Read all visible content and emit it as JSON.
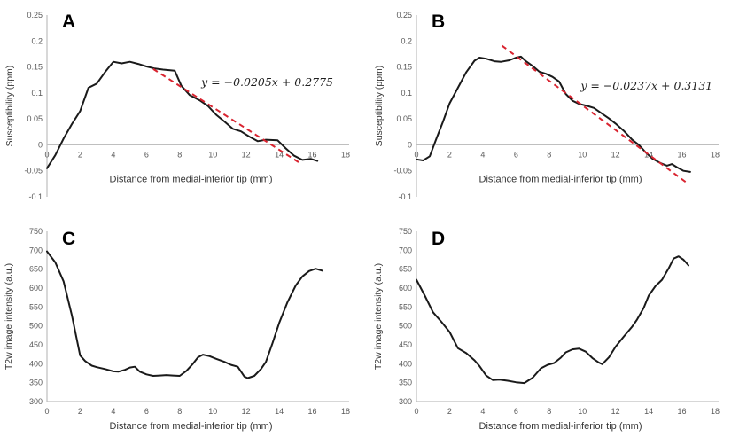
{
  "page": {
    "background": "#ffffff"
  },
  "colors": {
    "curve": "#1a1a1a",
    "trend": "#d92430",
    "axis_line": "#bfbfbf",
    "tick_text": "#595959",
    "axis_title_text": "#363636",
    "equation_text": "#1f1f1f",
    "panel_letter": "#000000"
  },
  "chart_data": [
    {
      "id": "panel-a",
      "letter": "A",
      "type": "line",
      "style": "ab",
      "xlabel": "Distance from medial-inferior tip (mm)",
      "ylabel": "Susceptibility (ppm)",
      "xlim": [
        0,
        18
      ],
      "ylim": [
        -0.1,
        0.25
      ],
      "x_axis_at": 0,
      "grid": false,
      "legend": null,
      "xticks": {
        "values": [
          0,
          2,
          4,
          6,
          8,
          10,
          12,
          14,
          16,
          18
        ],
        "labels": [
          "0",
          "2",
          "4",
          "6",
          "8",
          "10",
          "12",
          "14",
          "16",
          "18"
        ]
      },
      "yticks": {
        "values": [
          0.25,
          0.2,
          0.15,
          0.1,
          0.05,
          0,
          -0.05,
          -0.1
        ],
        "labels": [
          "0.25",
          "0.2",
          "0.15",
          "0.1",
          "0.05",
          "0",
          "-0.05",
          "-0.1"
        ]
      },
      "series": [
        {
          "name": "susceptibility-profile",
          "x": [
            0,
            0.5,
            1,
            1.5,
            2,
            2.5,
            3,
            3.5,
            4,
            4.5,
            5,
            5.5,
            6,
            6.5,
            7,
            7.7,
            8.1,
            8.6,
            9.2,
            9.7,
            10.2,
            10.7,
            11.2,
            11.7,
            12.2,
            12.7,
            13.2,
            13.9,
            14.4,
            14.9,
            15.4,
            15.9,
            16.3
          ],
          "y": [
            -0.045,
            -0.02,
            0.012,
            0.04,
            0.065,
            0.11,
            0.118,
            0.14,
            0.16,
            0.157,
            0.16,
            0.156,
            0.151,
            0.147,
            0.145,
            0.143,
            0.114,
            0.096,
            0.086,
            0.075,
            0.058,
            0.045,
            0.031,
            0.026,
            0.016,
            0.007,
            0.01,
            0.009,
            -0.007,
            -0.021,
            -0.029,
            -0.027,
            -0.031
          ]
        }
      ],
      "trendline": {
        "slope": -0.0205,
        "intercept": 0.2775,
        "x_start": 6.4,
        "x_end": 15.2,
        "label": "y = −0.0205x + 0.2775",
        "label_x": 9.3,
        "label_y": 0.113
      }
    },
    {
      "id": "panel-b",
      "letter": "B",
      "type": "line",
      "style": "ab",
      "xlabel": "Distance from medial-inferior tip (mm)",
      "ylabel": "Susceptibility (ppm)",
      "xlim": [
        0,
        18
      ],
      "ylim": [
        -0.1,
        0.25
      ],
      "x_axis_at": 0,
      "grid": false,
      "legend": null,
      "xticks": {
        "values": [
          0,
          2,
          4,
          6,
          8,
          10,
          12,
          14,
          16,
          18
        ],
        "labels": [
          "0",
          "2",
          "4",
          "6",
          "8",
          "10",
          "12",
          "14",
          "16",
          "18"
        ]
      },
      "yticks": {
        "values": [
          0.25,
          0.2,
          0.15,
          0.1,
          0.05,
          0,
          -0.05,
          -0.1
        ],
        "labels": [
          "0.25",
          "0.2",
          "0.15",
          "0.1",
          "0.05",
          "0",
          "-0.05",
          "-0.1"
        ]
      },
      "series": [
        {
          "name": "susceptibility-profile",
          "x": [
            0,
            0.4,
            0.8,
            1.2,
            1.6,
            2,
            2.5,
            3,
            3.5,
            3.8,
            4.2,
            4.7,
            5.1,
            5.6,
            6,
            6.3,
            6.6,
            7,
            7.4,
            7.8,
            8.2,
            8.6,
            9,
            9.4,
            9.8,
            10.3,
            10.7,
            11.1,
            11.6,
            12,
            12.5,
            13,
            13.4,
            13.8,
            14.2,
            14.7,
            15.1,
            15.4,
            15.7,
            16.1,
            16.5
          ],
          "y": [
            -0.028,
            -0.03,
            -0.022,
            0.012,
            0.045,
            0.08,
            0.11,
            0.14,
            0.162,
            0.168,
            0.166,
            0.161,
            0.16,
            0.163,
            0.168,
            0.17,
            0.161,
            0.152,
            0.141,
            0.137,
            0.131,
            0.122,
            0.098,
            0.085,
            0.079,
            0.075,
            0.071,
            0.062,
            0.051,
            0.041,
            0.027,
            0.01,
            0.0,
            -0.014,
            -0.026,
            -0.035,
            -0.04,
            -0.037,
            -0.043,
            -0.05,
            -0.052
          ]
        }
      ],
      "trendline": {
        "slope": -0.0237,
        "intercept": 0.3131,
        "x_start": 5.15,
        "x_end": 16.4,
        "label": "y = −0.0237x + 0.3131",
        "label_x": 9.9,
        "label_y": 0.107
      }
    },
    {
      "id": "panel-c",
      "letter": "C",
      "type": "line",
      "style": "cd",
      "xlabel": "Distance from medial-inferior tip (mm)",
      "ylabel": "T2w image intensity (a.u.)",
      "xlim": [
        0,
        18
      ],
      "ylim": [
        300,
        750
      ],
      "x_axis_at": 300,
      "grid": false,
      "legend": null,
      "xticks": {
        "values": [
          0,
          2,
          4,
          6,
          8,
          10,
          12,
          14,
          16,
          18
        ],
        "labels": [
          "0",
          "2",
          "4",
          "6",
          "8",
          "10",
          "12",
          "14",
          "16",
          "18"
        ]
      },
      "yticks": {
        "values": [
          750,
          700,
          650,
          600,
          550,
          500,
          450,
          400,
          350,
          300
        ],
        "labels": [
          "750",
          "700",
          "650",
          "600",
          "550",
          "500",
          "450",
          "400",
          "350",
          "300"
        ]
      },
      "series": [
        {
          "name": "t2w-intensity-profile",
          "x": [
            0,
            0.5,
            1,
            1.5,
            2,
            2.3,
            2.7,
            3,
            3.5,
            4,
            4.3,
            4.7,
            5,
            5.3,
            5.6,
            6,
            6.4,
            6.8,
            7.2,
            7.6,
            8,
            8.4,
            8.8,
            9.1,
            9.4,
            9.8,
            10.2,
            10.7,
            11.1,
            11.5,
            11.9,
            12.1,
            12.5,
            12.9,
            13.2,
            13.6,
            14,
            14.5,
            15,
            15.4,
            15.8,
            16.2,
            16.6
          ],
          "y": [
            697,
            668,
            618,
            528,
            422,
            407,
            395,
            391,
            386,
            380,
            379,
            384,
            390,
            392,
            379,
            372,
            368,
            369,
            370,
            369,
            368,
            381,
            400,
            417,
            424,
            420,
            413,
            405,
            397,
            392,
            366,
            362,
            368,
            386,
            405,
            455,
            508,
            563,
            607,
            631,
            645,
            651,
            646
          ]
        }
      ],
      "trendline": null
    },
    {
      "id": "panel-d",
      "letter": "D",
      "type": "line",
      "style": "cd",
      "xlabel": "Distance from medial-inferior tip (mm)",
      "ylabel": "T2w image intensity (a.u.)",
      "xlim": [
        0,
        18
      ],
      "ylim": [
        300,
        750
      ],
      "x_axis_at": 300,
      "grid": false,
      "legend": null,
      "xticks": {
        "values": [
          0,
          2,
          4,
          6,
          8,
          10,
          12,
          14,
          16,
          18
        ],
        "labels": [
          "0",
          "2",
          "4",
          "6",
          "8",
          "10",
          "12",
          "14",
          "16",
          "18"
        ]
      },
      "yticks": {
        "values": [
          750,
          700,
          650,
          600,
          550,
          500,
          450,
          400,
          350,
          300
        ],
        "labels": [
          "750",
          "700",
          "650",
          "600",
          "550",
          "500",
          "450",
          "400",
          "350",
          "300"
        ]
      },
      "series": [
        {
          "name": "t2w-intensity-profile",
          "x": [
            0,
            0.5,
            1,
            1.5,
            2,
            2.5,
            3,
            3.5,
            3.8,
            4.2,
            4.6,
            5,
            5.5,
            6,
            6.5,
            7,
            7.5,
            7.9,
            8.3,
            8.7,
            9,
            9.4,
            9.8,
            10.2,
            10.6,
            11,
            11.2,
            11.6,
            12,
            12.5,
            13,
            13.3,
            13.7,
            14,
            14.4,
            14.8,
            15.2,
            15.5,
            15.8,
            16.1,
            16.4
          ],
          "y": [
            622,
            580,
            536,
            511,
            484,
            441,
            428,
            409,
            394,
            369,
            357,
            358,
            355,
            351,
            349,
            363,
            388,
            397,
            402,
            416,
            430,
            438,
            440,
            432,
            415,
            403,
            399,
            417,
            445,
            472,
            498,
            517,
            548,
            580,
            605,
            622,
            652,
            678,
            684,
            675,
            660
          ]
        }
      ],
      "trendline": null
    }
  ]
}
